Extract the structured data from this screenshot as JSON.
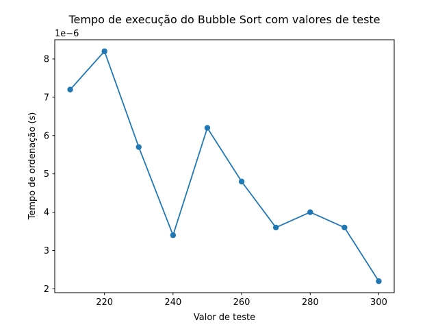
{
  "chart_data": {
    "type": "line",
    "title": "Tempo de execução do Bubble Sort com valores de teste",
    "xlabel": "Valor de teste",
    "ylabel": "Tempo de ordenação (s)",
    "y_offset_label": "1e−6",
    "y_multiplier": 1e-06,
    "x": [
      210,
      220,
      230,
      240,
      250,
      260,
      270,
      280,
      290,
      300
    ],
    "series": [
      {
        "values": [
          7.2e-06,
          8.2e-06,
          5.7e-06,
          3.4e-06,
          6.2e-06,
          4.8e-06,
          3.6e-06,
          4e-06,
          3.6e-06,
          2.2e-06
        ],
        "color": "#1f77b4",
        "marker": "circle"
      }
    ],
    "xlim": [
      205.5,
      304.5
    ],
    "ylim": [
      1.9e-06,
      8.5e-06
    ],
    "xticks": [
      220,
      240,
      260,
      280,
      300
    ],
    "xtick_labels": [
      "220",
      "240",
      "260",
      "280",
      "300"
    ],
    "yticks": [
      2e-06,
      3e-06,
      4e-06,
      5e-06,
      6e-06,
      7e-06,
      8e-06
    ],
    "ytick_labels": [
      "2",
      "3",
      "4",
      "5",
      "6",
      "7",
      "8"
    ],
    "grid": false,
    "legend": "none"
  }
}
